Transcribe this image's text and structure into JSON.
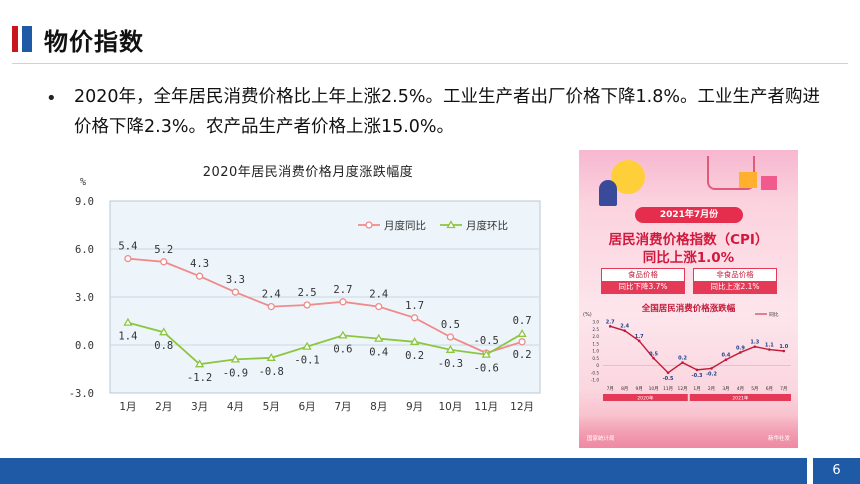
{
  "slide": {
    "title": "物价指数",
    "bullet": "2020年，全年居民消费价格比上年上涨2.5%。工业生产者出厂价格下降1.8%。工业生产者购进价格下降2.3%。农产品生产者价格上涨15.0%。",
    "page_number": "6"
  },
  "colors": {
    "accent_blue": "#1f5aa6",
    "accent_red": "#c8161d",
    "series_yoy": "#f08a8a",
    "series_mom": "#8cc63f",
    "plot_bg": "#eef5fa"
  },
  "chart_data": [
    {
      "type": "line",
      "title": "2020年居民消费价格月度涨跌幅度",
      "unit_label": "%",
      "categories": [
        "1月",
        "2月",
        "3月",
        "4月",
        "5月",
        "6月",
        "7月",
        "8月",
        "9月",
        "10月",
        "11月",
        "12月"
      ],
      "series": [
        {
          "name": "月度同比",
          "values": [
            5.4,
            5.2,
            4.3,
            3.3,
            2.4,
            2.5,
            2.7,
            2.4,
            1.7,
            0.5,
            -0.5,
            0.2
          ]
        },
        {
          "name": "月度环比",
          "values": [
            1.4,
            0.8,
            -1.2,
            -0.9,
            -0.8,
            -0.1,
            0.6,
            0.4,
            0.2,
            -0.3,
            -0.6,
            0.7
          ]
        }
      ],
      "yoy_labels": [
        "5.4",
        "5.2",
        "4.3",
        "3.3",
        "2.4",
        "2.5",
        "2.7",
        "2.4",
        "1.7",
        "0.5",
        "-0.5",
        "0.2"
      ],
      "mom_labels": [
        "1.4",
        "0.8",
        "-1.2",
        "-0.9",
        "-0.8",
        "-0.1",
        "0.6",
        "0.4",
        "0.2",
        "-0.3",
        "-0.6",
        "0.7"
      ],
      "y_ticks": [
        9.0,
        6.0,
        3.0,
        0.0,
        -3.0
      ],
      "y_tick_labels": [
        "9.0",
        "6.0",
        "3.0",
        "0.0",
        "-3.0"
      ],
      "ylim": [
        -3.0,
        9.0
      ],
      "grid": "horizontal",
      "legend": "top-right"
    },
    {
      "type": "line",
      "title": "全国居民消费价格涨跌幅",
      "unit_label": "(%)",
      "categories": [
        "7月",
        "8月",
        "9月",
        "10月",
        "11月",
        "12月",
        "1月",
        "2月",
        "3月",
        "4月",
        "5月",
        "6月",
        "7月"
      ],
      "series": [
        {
          "name": "同比",
          "values": [
            2.7,
            2.4,
            1.7,
            0.5,
            -0.5,
            0.2,
            -0.3,
            -0.2,
            0.4,
            0.9,
            1.3,
            1.1,
            1.0
          ]
        }
      ],
      "value_labels": [
        "2.7",
        "2.4",
        "1.7",
        "0.5",
        "-0.5",
        "0.2",
        "-0.3",
        "-0.2",
        "0.4",
        "0.9",
        "1.3",
        "1.1",
        "1.0"
      ],
      "y_tick_labels": [
        "3.0",
        "2.5",
        "2.0",
        "1.5",
        "1.0",
        "0.5",
        "0",
        "-0.5",
        "-1.0"
      ],
      "ylim": [
        -1.0,
        3.0
      ],
      "year_labels": [
        "2020年",
        "2021年"
      ],
      "legend": "top-right"
    }
  ],
  "poster": {
    "date_badge": "2021年7月份",
    "headline_line1": "居民消费价格指数（CPI）",
    "headline_line2": "同比上涨1.0%",
    "food_label": "食品价格",
    "food_value": "同比下降3.7%",
    "nonfood_label": "非食品价格",
    "nonfood_value": "同比上涨2.1%",
    "footer_left": "国家统计局",
    "footer_right": "新华社发"
  }
}
